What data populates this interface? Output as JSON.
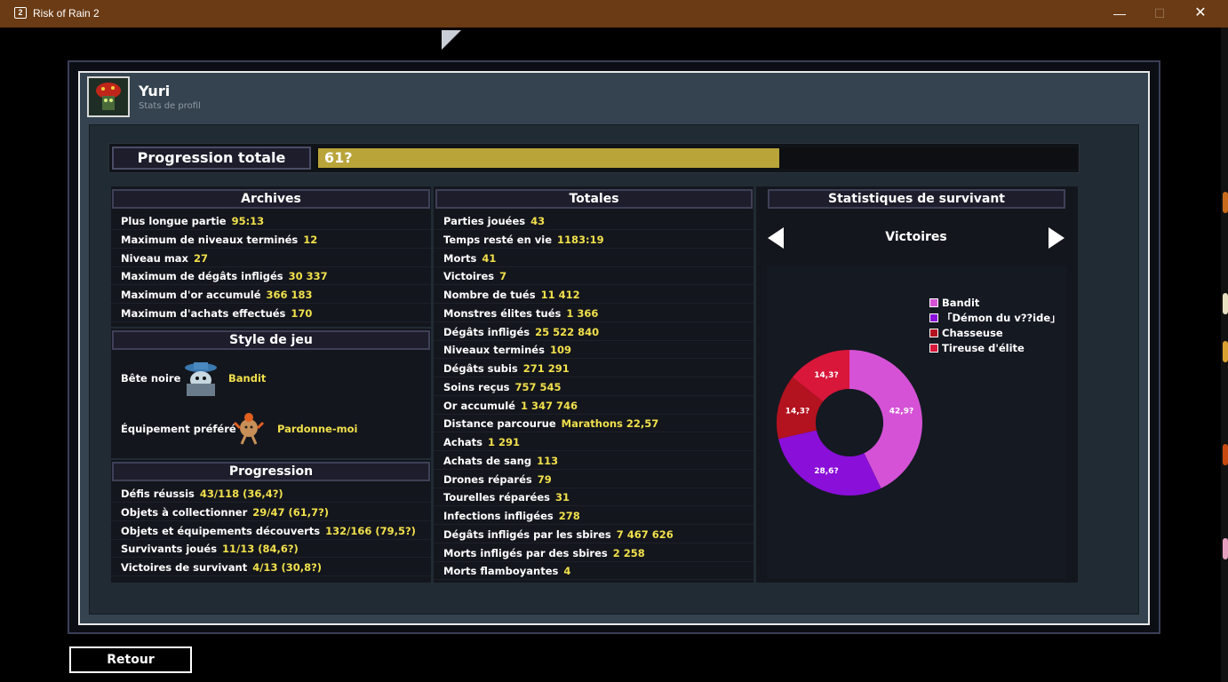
{
  "window": {
    "title": "Risk of Rain 2",
    "minimize": "—",
    "maximize": "☐",
    "close": "✕",
    "icon_glyph": "2"
  },
  "profile": {
    "name": "Yuri",
    "subtitle": "Stats de profil"
  },
  "progress": {
    "label": "Progression totale",
    "text": "61?",
    "fraction": 0.61
  },
  "archives": {
    "title": "Archives",
    "rows": [
      {
        "label": "Plus longue partie",
        "value": "95:13"
      },
      {
        "label": "Maximum de niveaux terminés",
        "value": "12"
      },
      {
        "label": "Niveau max",
        "value": "27"
      },
      {
        "label": "Maximum de dégâts infligés",
        "value": "30 337"
      },
      {
        "label": "Maximum d'or accumulé",
        "value": "366 183"
      },
      {
        "label": "Maximum d'achats effectués",
        "value": "170"
      }
    ]
  },
  "playstyle": {
    "title": "Style de jeu",
    "nemesis_label": "Bête noire",
    "nemesis_value": "Bandit",
    "equipment_label": "Équipement préféré",
    "equipment_value": "Pardonne-moi"
  },
  "progression": {
    "title": "Progression",
    "rows": [
      {
        "label": "Défis réussis",
        "value": "43/118 (36,4?)"
      },
      {
        "label": "Objets à collectionner",
        "value": "29/47 (61,7?)"
      },
      {
        "label": "Objets et équipements découverts",
        "value": "132/166 (79,5?)"
      },
      {
        "label": "Survivants joués",
        "value": "11/13 (84,6?)"
      },
      {
        "label": "Victoires de survivant",
        "value": "4/13 (30,8?)"
      }
    ]
  },
  "totals": {
    "title": "Totales",
    "rows": [
      {
        "label": "Parties jouées",
        "value": "43"
      },
      {
        "label": "Temps resté en vie",
        "value": "1183:19"
      },
      {
        "label": "Morts",
        "value": "41"
      },
      {
        "label": "Victoires",
        "value": "7"
      },
      {
        "label": "Nombre de tués",
        "value": "11 412"
      },
      {
        "label": "Monstres élites tués",
        "value": "1 366"
      },
      {
        "label": "Dégâts infligés",
        "value": "25 522 840"
      },
      {
        "label": "Niveaux terminés",
        "value": "109"
      },
      {
        "label": "Dégâts subis",
        "value": "271 291"
      },
      {
        "label": "Soins reçus",
        "value": "757 545"
      },
      {
        "label": "Or accumulé",
        "value": "1 347 746"
      },
      {
        "label": "Distance parcourue",
        "value": "Marathons 22,57"
      },
      {
        "label": "Achats",
        "value": "1 291"
      },
      {
        "label": "Achats de sang",
        "value": "113"
      },
      {
        "label": "Drones réparés",
        "value": "79"
      },
      {
        "label": "Tourelles réparées",
        "value": "31"
      },
      {
        "label": "Infections infligées",
        "value": "278"
      },
      {
        "label": "Dégâts infligés par les sbires",
        "value": "7 467 626"
      },
      {
        "label": "Morts infligés par des sbires",
        "value": "2 258"
      },
      {
        "label": "Morts flamboyantes",
        "value": "4"
      }
    ]
  },
  "survivor_stats": {
    "title": "Statistiques de survivant",
    "category": "Victoires"
  },
  "chart_data": {
    "type": "pie",
    "donut": true,
    "categories": [
      "Bandit",
      "「Démon du v??ide」",
      "Chasseuse",
      "Tireuse d'élite"
    ],
    "values": [
      42.9,
      28.6,
      14.3,
      14.3
    ],
    "labels": [
      "42,9?",
      "28,6?",
      "14,3?",
      "14,3?"
    ],
    "colors": [
      "#d552d6",
      "#8a0fd8",
      "#b3121f",
      "#d8173a"
    ],
    "legend_position": "top-right"
  },
  "back_button": {
    "label": "Retour"
  }
}
